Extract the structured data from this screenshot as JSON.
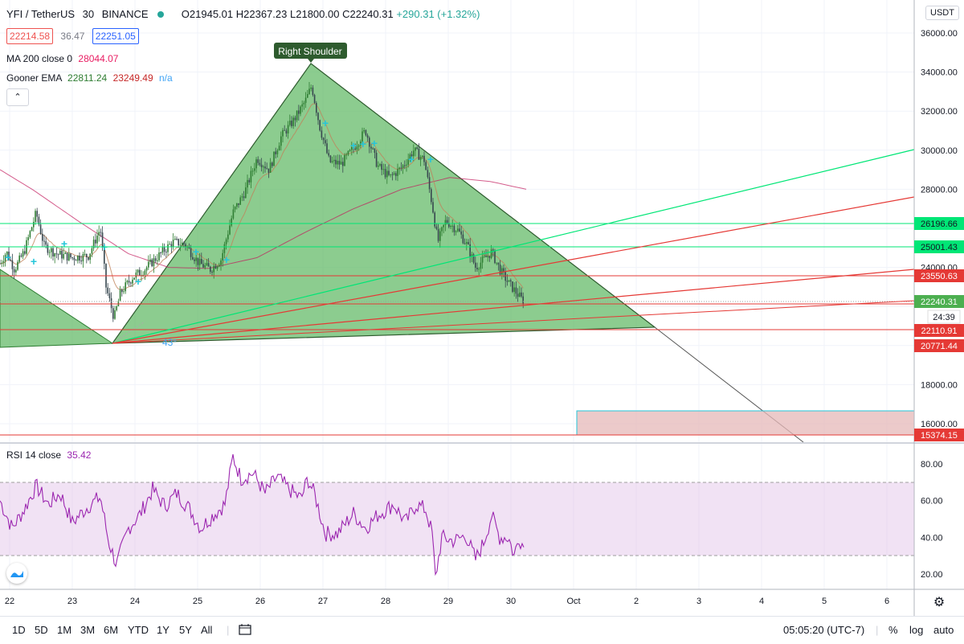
{
  "header": {
    "symbol": "YFI / TetherUS",
    "interval": "30",
    "exchange": "BINANCE",
    "open": "O21945.01",
    "high": "H22367.23",
    "low": "L21800.00",
    "close": "C22240.31",
    "change": "+290.31 (+1.32%)",
    "bid": "22214.58",
    "spread": "36.47",
    "ask": "22251.05"
  },
  "indicators": {
    "ma_label": "MA 200 close 0",
    "ma_value": "28044.07",
    "ema_label": "Gooner EMA",
    "ema_value1": "22811.24",
    "ema_value2": "23249.49",
    "ema_value3": "n/a",
    "rsi_label": "RSI 14 close",
    "rsi_value": "35.42"
  },
  "currency_button": "USDT",
  "annotation": "Right Shoulder",
  "angle_label": "43°",
  "price_axis": {
    "ticks": [
      "36000.00",
      "34000.00",
      "32000.00",
      "30000.00",
      "28000.00",
      "24000.00",
      "18000.00",
      "16000.00"
    ],
    "labels": {
      "l26196": "26196.66",
      "l25001": "25001.43",
      "l23550": "23550.63",
      "l22240": "22240.31",
      "countdown": "24:39",
      "l22110": "22110.91",
      "l20771": "20771.44",
      "l15374": "15374.15"
    }
  },
  "rsi_axis": [
    "80.00",
    "60.00",
    "40.00",
    "20.00"
  ],
  "time_axis": [
    "22",
    "23",
    "24",
    "25",
    "26",
    "27",
    "28",
    "29",
    "30",
    "Oct",
    "2",
    "3",
    "4",
    "5",
    "6"
  ],
  "bottom_bar": {
    "ranges": [
      "1D",
      "5D",
      "1M",
      "3M",
      "6M",
      "YTD",
      "1Y",
      "5Y",
      "All"
    ],
    "time": "05:05:20 (UTC-7)",
    "percent": "%",
    "log": "log",
    "auto": "auto"
  },
  "colors": {
    "up": "#26a69a",
    "down": "#ef5350",
    "triangle": "#66bb6a",
    "rsi": "#9c27b0",
    "ma": "#e91e63"
  },
  "chart_data": {
    "type": "candlestick",
    "title": "YFI / TetherUS 30 BINANCE",
    "y_range": [
      14800,
      37000
    ],
    "rsi_range": [
      15,
      88
    ],
    "x_labels": [
      "22",
      "23",
      "24",
      "25",
      "26",
      "27",
      "28",
      "29",
      "30"
    ],
    "price_anchors": [
      [
        0,
        24200
      ],
      [
        8,
        24800
      ],
      [
        18,
        23900
      ],
      [
        30,
        24800
      ],
      [
        45,
        26800
      ],
      [
        55,
        25100
      ],
      [
        70,
        24700
      ],
      [
        90,
        24500
      ],
      [
        110,
        24600
      ],
      [
        125,
        26000
      ],
      [
        132,
        23000
      ],
      [
        142,
        21400
      ],
      [
        150,
        22700
      ],
      [
        165,
        23500
      ],
      [
        180,
        23900
      ],
      [
        200,
        24700
      ],
      [
        215,
        25300
      ],
      [
        230,
        25200
      ],
      [
        248,
        24200
      ],
      [
        262,
        23900
      ],
      [
        275,
        24400
      ],
      [
        290,
        26800
      ],
      [
        305,
        27900
      ],
      [
        320,
        29600
      ],
      [
        335,
        29000
      ],
      [
        350,
        30700
      ],
      [
        365,
        31500
      ],
      [
        380,
        32500
      ],
      [
        388,
        33300
      ],
      [
        398,
        31200
      ],
      [
        410,
        29400
      ],
      [
        425,
        29300
      ],
      [
        440,
        30100
      ],
      [
        455,
        31000
      ],
      [
        470,
        29200
      ],
      [
        485,
        28600
      ],
      [
        500,
        29100
      ],
      [
        515,
        30000
      ],
      [
        528,
        29500
      ],
      [
        538,
        27200
      ],
      [
        545,
        25300
      ],
      [
        555,
        26400
      ],
      [
        570,
        25900
      ],
      [
        582,
        25100
      ],
      [
        592,
        24000
      ],
      [
        602,
        24400
      ],
      [
        612,
        24800
      ],
      [
        622,
        23900
      ],
      [
        633,
        23200
      ],
      [
        643,
        22700
      ],
      [
        652,
        22240
      ]
    ],
    "ma200_anchors": [
      [
        0,
        29000
      ],
      [
        40,
        28000
      ],
      [
        100,
        26300
      ],
      [
        160,
        24700
      ],
      [
        210,
        24000
      ],
      [
        260,
        23950
      ],
      [
        320,
        24500
      ],
      [
        380,
        25800
      ],
      [
        440,
        27000
      ],
      [
        500,
        28000
      ],
      [
        560,
        28600
      ],
      [
        610,
        28400
      ],
      [
        655,
        28000
      ]
    ],
    "rsi_anchors": [
      [
        0,
        60
      ],
      [
        15,
        45
      ],
      [
        30,
        55
      ],
      [
        45,
        68
      ],
      [
        60,
        58
      ],
      [
        75,
        64
      ],
      [
        90,
        48
      ],
      [
        110,
        57
      ],
      [
        125,
        62
      ],
      [
        135,
        38
      ],
      [
        145,
        25
      ],
      [
        160,
        45
      ],
      [
        175,
        53
      ],
      [
        190,
        66
      ],
      [
        205,
        57
      ],
      [
        220,
        64
      ],
      [
        235,
        56
      ],
      [
        250,
        45
      ],
      [
        265,
        52
      ],
      [
        280,
        58
      ],
      [
        290,
        84
      ],
      [
        300,
        72
      ],
      [
        315,
        75
      ],
      [
        330,
        64
      ],
      [
        345,
        73
      ],
      [
        360,
        66
      ],
      [
        375,
        61
      ],
      [
        383,
        72
      ],
      [
        392,
        63
      ],
      [
        405,
        42
      ],
      [
        420,
        42
      ],
      [
        440,
        53
      ],
      [
        455,
        45
      ],
      [
        470,
        52
      ],
      [
        490,
        58
      ],
      [
        505,
        48
      ],
      [
        518,
        58
      ],
      [
        530,
        55
      ],
      [
        538,
        42
      ],
      [
        542,
        18
      ],
      [
        550,
        40
      ],
      [
        565,
        38
      ],
      [
        580,
        41
      ],
      [
        592,
        28
      ],
      [
        602,
        37
      ],
      [
        612,
        52
      ],
      [
        622,
        40
      ],
      [
        633,
        40
      ],
      [
        640,
        30
      ],
      [
        646,
        40
      ],
      [
        652,
        35
      ]
    ],
    "rsi_bands": [
      70,
      30
    ],
    "horizontal_levels": [
      26196.66,
      25001.43,
      23550.63,
      22110.91,
      15374.15
    ],
    "current_price": 22240.31
  }
}
